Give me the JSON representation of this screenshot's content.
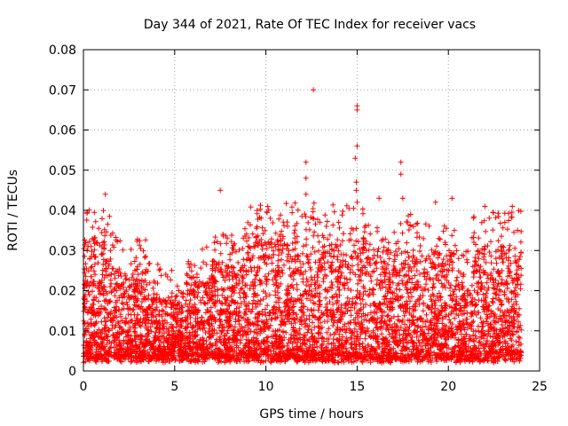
{
  "chart_data": {
    "type": "scatter",
    "title": "Day 344 of 2021, Rate Of TEC Index for receiver vacs",
    "xlabel": "GPS time / hours",
    "ylabel": "ROTI / TECUs",
    "xlim": [
      0,
      25
    ],
    "ylim": [
      0,
      0.08
    ],
    "x_ticks": [
      0,
      5,
      10,
      15,
      20,
      25
    ],
    "x_tick_labels": [
      "0",
      "5",
      "10",
      "15",
      "20",
      "25"
    ],
    "y_ticks": [
      0,
      0.01,
      0.02,
      0.03,
      0.04,
      0.05,
      0.06,
      0.07,
      0.08
    ],
    "y_tick_labels": [
      "0",
      "0.01",
      "0.02",
      "0.03",
      "0.04",
      "0.05",
      "0.06",
      "0.07",
      "0.08"
    ],
    "grid": true,
    "marker": "+",
    "color": "#ff0000",
    "series": [
      {
        "name": "ROTI",
        "description_of_density": "dense cloud of points between ~0.003 and ~0.03 TECU across 0-24 h",
        "notable_points": [
          {
            "x": 1.2,
            "y": 0.044
          },
          {
            "x": 7.5,
            "y": 0.045
          },
          {
            "x": 10.1,
            "y": 0.041
          },
          {
            "x": 12.2,
            "y": 0.052
          },
          {
            "x": 12.2,
            "y": 0.048
          },
          {
            "x": 12.2,
            "y": 0.044
          },
          {
            "x": 12.6,
            "y": 0.07
          },
          {
            "x": 15.0,
            "y": 0.066
          },
          {
            "x": 15.0,
            "y": 0.065
          },
          {
            "x": 15.0,
            "y": 0.056
          },
          {
            "x": 14.9,
            "y": 0.053
          },
          {
            "x": 14.95,
            "y": 0.047
          },
          {
            "x": 14.95,
            "y": 0.045
          },
          {
            "x": 15.0,
            "y": 0.042
          },
          {
            "x": 16.2,
            "y": 0.043
          },
          {
            "x": 17.4,
            "y": 0.052
          },
          {
            "x": 17.4,
            "y": 0.049
          },
          {
            "x": 17.5,
            "y": 0.043
          },
          {
            "x": 19.3,
            "y": 0.042
          },
          {
            "x": 20.2,
            "y": 0.043
          },
          {
            "x": 22.0,
            "y": 0.041
          },
          {
            "x": 23.5,
            "y": 0.041
          }
        ]
      }
    ]
  }
}
